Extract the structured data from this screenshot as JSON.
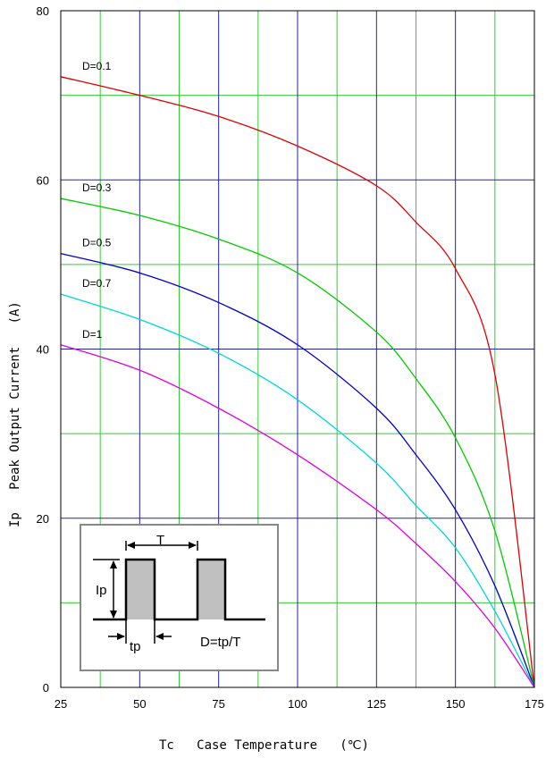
{
  "chart_data": {
    "type": "line",
    "xlabel": "Tc   Case Temperature   (℃)",
    "ylabel": "Ip   Peak Output Current   (A)",
    "xlim": [
      25,
      175
    ],
    "ylim": [
      0,
      80
    ],
    "xticks": [
      "25",
      "50",
      "75",
      "100",
      "125",
      "150",
      "175"
    ],
    "yticks": [
      "0",
      "20",
      "40",
      "60",
      "80"
    ],
    "grid": true,
    "colors": {
      "grid_major": "#2222aa",
      "grid_minor": "#33cc33",
      "frame": "#000000"
    },
    "series": [
      {
        "name": "D=0.1",
        "color": "#e00000",
        "x": [
          25,
          50,
          75,
          100,
          125,
          137.5,
          150,
          162.5,
          175
        ],
        "y": [
          72.2,
          70.0,
          67.5,
          64.0,
          59.3,
          55.0,
          49.5,
          37.0,
          0
        ]
      },
      {
        "name": "D=0.3",
        "color": "#00cc00",
        "x": [
          25,
          50,
          75,
          100,
          125,
          137.5,
          150,
          162.5,
          175
        ],
        "y": [
          57.8,
          55.8,
          53.0,
          49.0,
          42.0,
          36.5,
          29.5,
          18.5,
          0
        ]
      },
      {
        "name": "D=0.5",
        "color": "#0000cc",
        "x": [
          25,
          50,
          75,
          100,
          125,
          137.5,
          150,
          162.5,
          175
        ],
        "y": [
          51.3,
          49.0,
          45.5,
          40.5,
          33.0,
          27.5,
          21.0,
          12.0,
          0
        ]
      },
      {
        "name": "D=0.7",
        "color": "#00d8d8",
        "x": [
          25,
          50,
          75,
          100,
          125,
          137.5,
          150,
          162.5,
          175
        ],
        "y": [
          46.5,
          43.5,
          39.5,
          34.0,
          26.5,
          21.5,
          16.5,
          9.0,
          0
        ]
      },
      {
        "name": "D=1",
        "color": "#e000e0",
        "x": [
          25,
          50,
          75,
          100,
          125,
          137.5,
          150,
          162.5,
          175
        ],
        "y": [
          40.5,
          37.5,
          33.0,
          27.5,
          21.0,
          17.0,
          12.5,
          7.0,
          0
        ]
      }
    ],
    "inset": {
      "period_label": "T",
      "amplitude_label": "Ip",
      "pulse_width_label": "tp",
      "formula": "D=tp/T"
    }
  }
}
